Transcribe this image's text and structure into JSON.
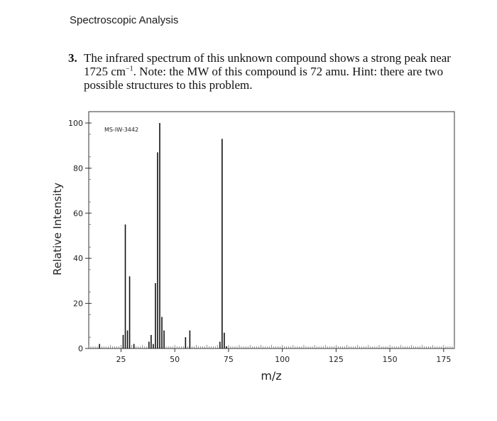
{
  "header": {
    "section_title": "Spectroscopic Analysis"
  },
  "question": {
    "number": "3.",
    "text_before_sup": "The infrared spectrum of this unknown compound shows a strong peak near 1725 cm",
    "sup": "−1",
    "text_after_sup": ". Note: the MW of this compound is 72 amu. Hint: there are two possible structures to this problem."
  },
  "chart_data": {
    "type": "bar",
    "title": "",
    "annotation": "MS-IW-3442",
    "xlabel": "m/z",
    "ylabel": "Relative Intensity",
    "xlim": [
      10,
      180
    ],
    "ylim": [
      0,
      100
    ],
    "x_ticks": [
      25,
      50,
      75,
      100,
      125,
      150,
      175
    ],
    "y_ticks": [
      0,
      20,
      40,
      60,
      80,
      100
    ],
    "grid": false,
    "peaks": [
      {
        "x": 15,
        "y": 2
      },
      {
        "x": 26,
        "y": 6
      },
      {
        "x": 27,
        "y": 55
      },
      {
        "x": 28,
        "y": 8
      },
      {
        "x": 29,
        "y": 32
      },
      {
        "x": 31,
        "y": 2
      },
      {
        "x": 38,
        "y": 3
      },
      {
        "x": 39,
        "y": 6
      },
      {
        "x": 40,
        "y": 2
      },
      {
        "x": 41,
        "y": 29
      },
      {
        "x": 42,
        "y": 87
      },
      {
        "x": 43,
        "y": 100
      },
      {
        "x": 44,
        "y": 14
      },
      {
        "x": 45,
        "y": 8
      },
      {
        "x": 55,
        "y": 5
      },
      {
        "x": 57,
        "y": 8
      },
      {
        "x": 71,
        "y": 3
      },
      {
        "x": 72,
        "y": 93
      },
      {
        "x": 73,
        "y": 7
      },
      {
        "x": 74,
        "y": 1
      }
    ]
  }
}
